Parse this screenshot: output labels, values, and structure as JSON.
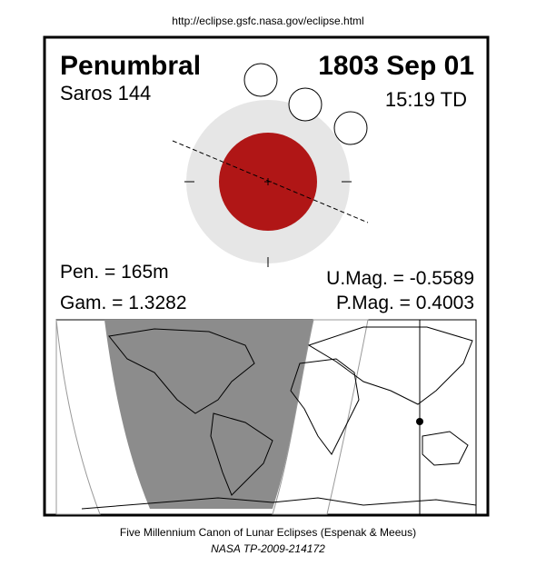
{
  "header": {
    "url": "http://eclipse.gsfc.nasa.gov/eclipse.html"
  },
  "eclipse": {
    "type": "Penumbral",
    "date": "1803 Sep 01",
    "saros": "Saros 144",
    "time": "15:19 TD",
    "pen": "Pen. = 165m",
    "gam": "Gam. = 1.3282",
    "umag": "U.Mag. = -0.5589",
    "pmag": "P.Mag. = 0.4003"
  },
  "footer": {
    "line1": "Five Millennium Canon of Lunar Eclipses (Espenak & Meeus)",
    "line2": "NASA TP-2009-214172"
  }
}
